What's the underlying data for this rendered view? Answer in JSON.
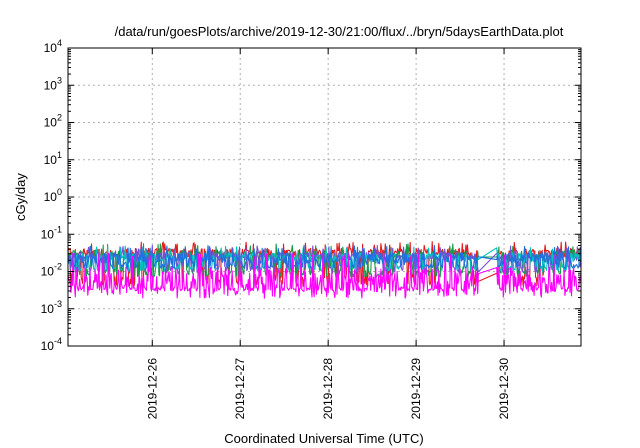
{
  "chart_data": {
    "type": "line",
    "title": "/data/run/goesPlots/archive/2019-12-30/21:00/flux/../bryn/5daysEarthData.plot",
    "xlabel": "Coordinated Universal Time (UTC)",
    "ylabel": "cGy/day",
    "yscale": "log",
    "ylim": [
      0.0001,
      10000
    ],
    "xlim": [
      "2019-12-25T01:00",
      "2019-12-30T21:00"
    ],
    "grid": true,
    "y_ticks": [
      {
        "base": "10",
        "exp": "-4",
        "value": 0.0001
      },
      {
        "base": "10",
        "exp": "-3",
        "value": 0.001
      },
      {
        "base": "10",
        "exp": "-2",
        "value": 0.01
      },
      {
        "base": "10",
        "exp": "-1",
        "value": 0.1
      },
      {
        "base": "10",
        "exp": "0",
        "value": 1
      },
      {
        "base": "10",
        "exp": "1",
        "value": 10
      },
      {
        "base": "10",
        "exp": "2",
        "value": 100
      },
      {
        "base": "10",
        "exp": "3",
        "value": 1000
      },
      {
        "base": "10",
        "exp": "4",
        "value": 10000
      }
    ],
    "x_ticks": [
      "2019-12-26",
      "2019-12-27",
      "2019-12-28",
      "2019-12-29",
      "2019-12-30"
    ],
    "x_tick_times": [
      "2019-12-26T00:00",
      "2019-12-27T00:00",
      "2019-12-28T00:00",
      "2019-12-29T00:00",
      "2019-12-30T00:00"
    ],
    "gap": {
      "start": "2019-12-29T17:00",
      "end": "2019-12-29T22:00"
    },
    "series": [
      {
        "color": "#e41a1c",
        "typical": 0.032,
        "high": 0.05,
        "low": 0.004,
        "description": "red"
      },
      {
        "color": "#1a9a4a",
        "typical": 0.028,
        "high": 0.045,
        "low": 0.007,
        "description": "green"
      },
      {
        "color": "#7a4fd6",
        "typical": 0.026,
        "high": 0.04,
        "low": 0.009,
        "description": "purple"
      },
      {
        "color": "#00c2c2",
        "typical": 0.024,
        "high": 0.038,
        "low": 0.01,
        "description": "cyan"
      },
      {
        "color": "#1f6fe0",
        "typical": 0.022,
        "high": 0.04,
        "low": 0.012,
        "description": "blue"
      },
      {
        "color": "#ff00ff",
        "typical": 0.005,
        "high": 0.025,
        "low": 0.003,
        "description": "magenta"
      }
    ]
  }
}
